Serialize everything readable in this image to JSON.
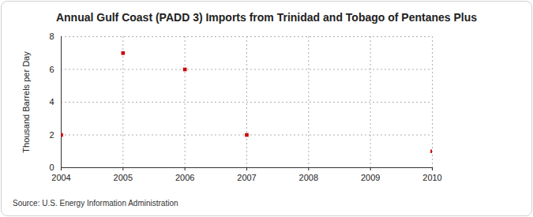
{
  "chart_data": {
    "type": "scatter",
    "title": "Annual Gulf Coast (PADD 3) Imports from Trinidad and Tobago of Pentanes Plus",
    "subtitle": "Source: U.S. Energy Information Administration",
    "y_label": "Thousand Barrels per Day",
    "x": [
      2004,
      2005,
      2006,
      2007,
      2010
    ],
    "values": [
      2,
      7,
      6,
      2,
      1
    ],
    "color": "#cc0000",
    "marker": "square",
    "xlim": [
      2004,
      2010
    ],
    "xticks": [
      2004,
      2005,
      2006,
      2007,
      2008,
      2009,
      2010
    ],
    "ylim": [
      0,
      8
    ],
    "yticks": [
      0,
      2,
      4,
      6,
      8
    ],
    "grid": true
  }
}
